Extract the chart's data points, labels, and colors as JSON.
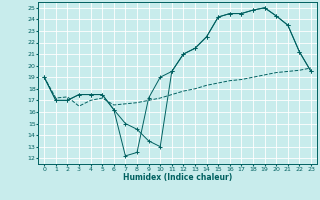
{
  "xlabel": "Humidex (Indice chaleur)",
  "bg_color": "#c8ecec",
  "grid_color": "#ffffff",
  "line_color": "#006060",
  "xlim": [
    -0.5,
    23.5
  ],
  "ylim": [
    11.5,
    25.5
  ],
  "yticks": [
    12,
    13,
    14,
    15,
    16,
    17,
    18,
    19,
    20,
    21,
    22,
    23,
    24,
    25
  ],
  "xticks": [
    0,
    1,
    2,
    3,
    4,
    5,
    6,
    7,
    8,
    9,
    10,
    11,
    12,
    13,
    14,
    15,
    16,
    17,
    18,
    19,
    20,
    21,
    22,
    23
  ],
  "line1_x": [
    0,
    1,
    2,
    3,
    4,
    5,
    6,
    7,
    8,
    9,
    10,
    11,
    12,
    13,
    14,
    15,
    16,
    17,
    18,
    19,
    20,
    21,
    22,
    23
  ],
  "line1_y": [
    19,
    17,
    17,
    17.5,
    17.5,
    17.5,
    16.2,
    12.2,
    12.5,
    17.2,
    19,
    19.5,
    21,
    21.5,
    22.5,
    24.2,
    24.5,
    24.5,
    24.8,
    25,
    24.3,
    23.5,
    21.2,
    19.5
  ],
  "line2_x": [
    0,
    1,
    2,
    3,
    4,
    5,
    6,
    7,
    8,
    9,
    10,
    11,
    12,
    13,
    14,
    15,
    16,
    17,
    18,
    19,
    20,
    21,
    22,
    23
  ],
  "line2_y": [
    19,
    17,
    17,
    17.5,
    17.5,
    17.5,
    16.2,
    15,
    14.5,
    13.5,
    13,
    19.5,
    21,
    21.5,
    22.5,
    24.2,
    24.5,
    24.5,
    24.8,
    25,
    24.3,
    23.5,
    21.2,
    19.5
  ],
  "line3_x": [
    0,
    1,
    2,
    3,
    4,
    5,
    6,
    7,
    8,
    9,
    10,
    11,
    12,
    13,
    14,
    15,
    16,
    17,
    18,
    19,
    20,
    21,
    22,
    23
  ],
  "line3_y": [
    19,
    17.2,
    17.3,
    16.5,
    17.0,
    17.2,
    16.6,
    16.7,
    16.8,
    17.0,
    17.2,
    17.5,
    17.8,
    18.0,
    18.3,
    18.5,
    18.7,
    18.8,
    19.0,
    19.2,
    19.4,
    19.5,
    19.6,
    19.8
  ]
}
